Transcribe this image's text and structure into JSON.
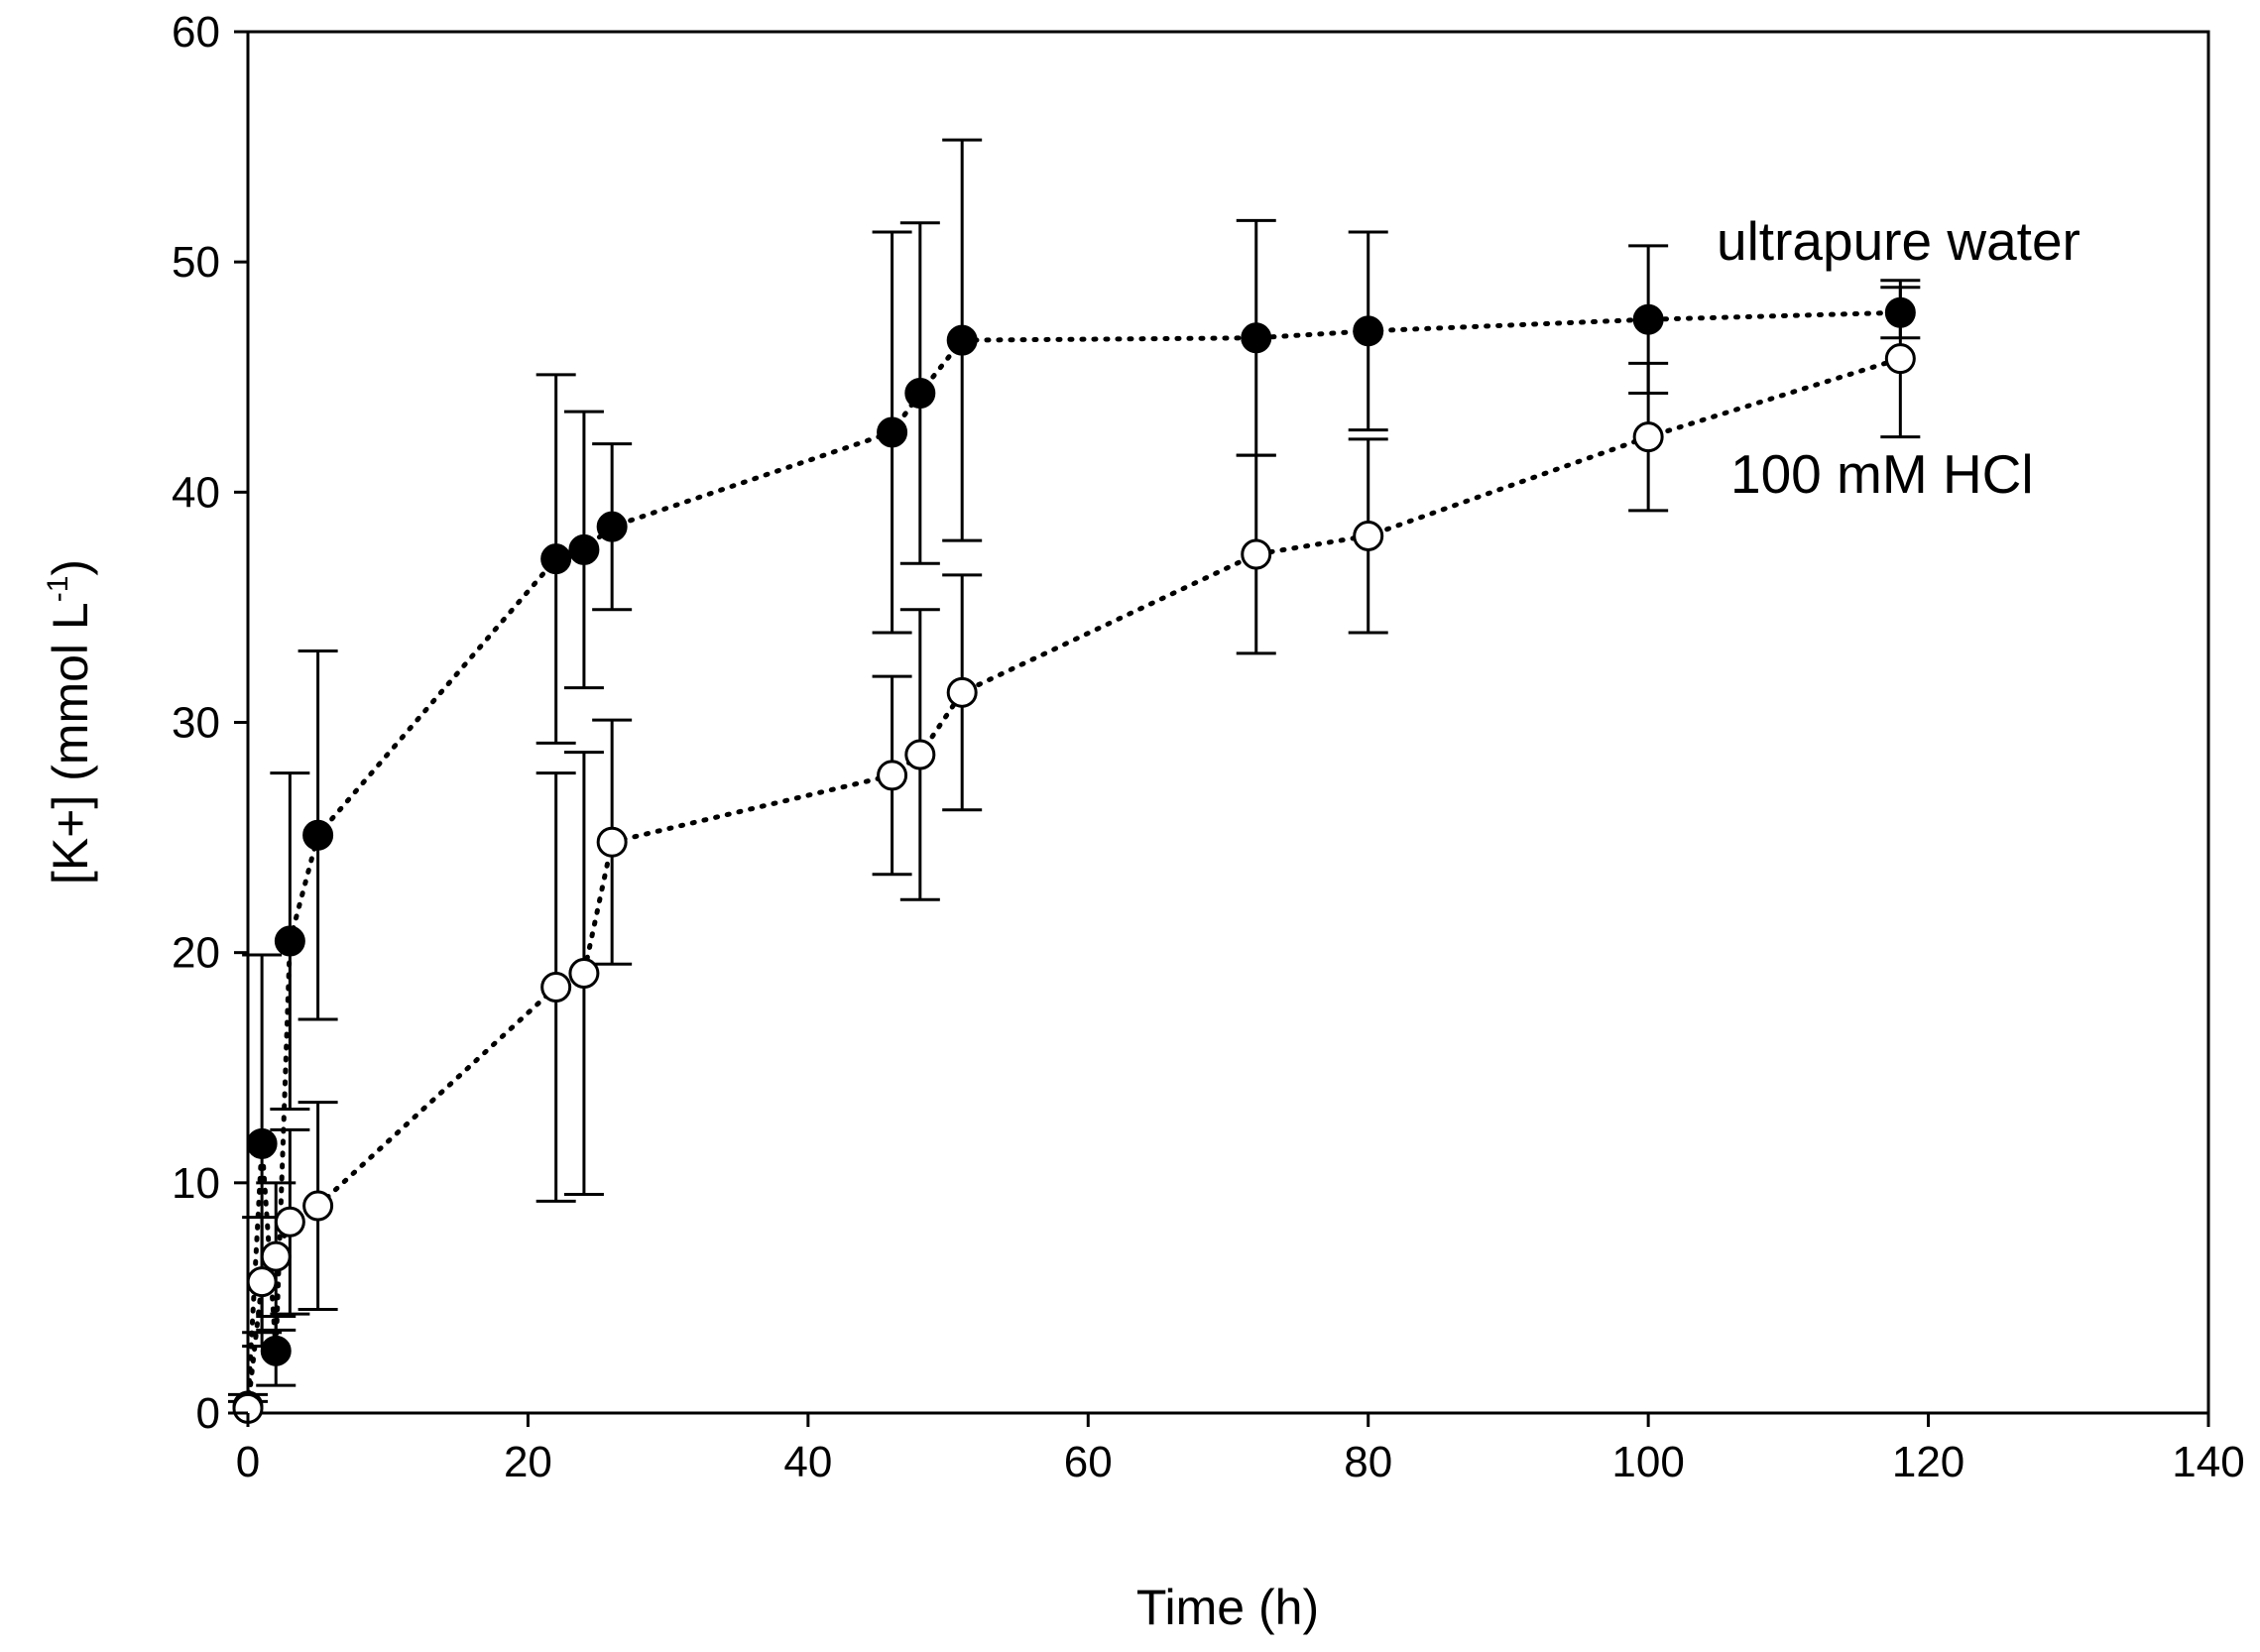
{
  "chart_data": {
    "type": "scatter",
    "title": "",
    "xlabel": "Time (h)",
    "ylabel": {
      "main": "[K+] (mmol L",
      "superscript": "-1",
      "close": ")"
    },
    "xlim": [
      0,
      140
    ],
    "ylim": [
      0,
      60
    ],
    "xticks": [
      0,
      20,
      40,
      60,
      80,
      100,
      120,
      140
    ],
    "yticks": [
      0,
      10,
      20,
      30,
      40,
      50,
      60
    ],
    "grid": false,
    "series": [
      {
        "name": "ultrapure water",
        "marker": "filled-circle",
        "line": "dotted",
        "color": "#000000",
        "x": [
          0,
          1,
          2,
          3,
          5,
          22,
          24,
          26,
          46,
          48,
          51,
          72,
          80,
          100,
          118
        ],
        "y": [
          0.3,
          11.7,
          2.7,
          20.5,
          25.1,
          37.1,
          37.5,
          38.5,
          42.6,
          44.3,
          46.6,
          46.7,
          47.0,
          47.5,
          47.8
        ],
        "err": [
          0.5,
          8.2,
          1.5,
          7.3,
          8.0,
          8.0,
          6.0,
          3.6,
          8.7,
          7.4,
          8.7,
          5.1,
          4.3,
          3.2,
          1.1
        ]
      },
      {
        "name": "100 mM HCl",
        "marker": "open-circle",
        "line": "dotted",
        "color": "#000000",
        "x": [
          0,
          1,
          2,
          3,
          5,
          22,
          24,
          26,
          46,
          48,
          51,
          72,
          80,
          100,
          118
        ],
        "y": [
          0.2,
          5.7,
          6.8,
          8.3,
          9.0,
          18.5,
          19.1,
          24.8,
          27.7,
          28.6,
          31.3,
          37.3,
          38.1,
          42.4,
          45.8
        ],
        "err": [
          0.3,
          2.8,
          3.2,
          4.0,
          4.5,
          9.3,
          9.6,
          5.3,
          4.3,
          6.3,
          5.1,
          4.3,
          4.2,
          3.2,
          3.4
        ]
      }
    ]
  }
}
